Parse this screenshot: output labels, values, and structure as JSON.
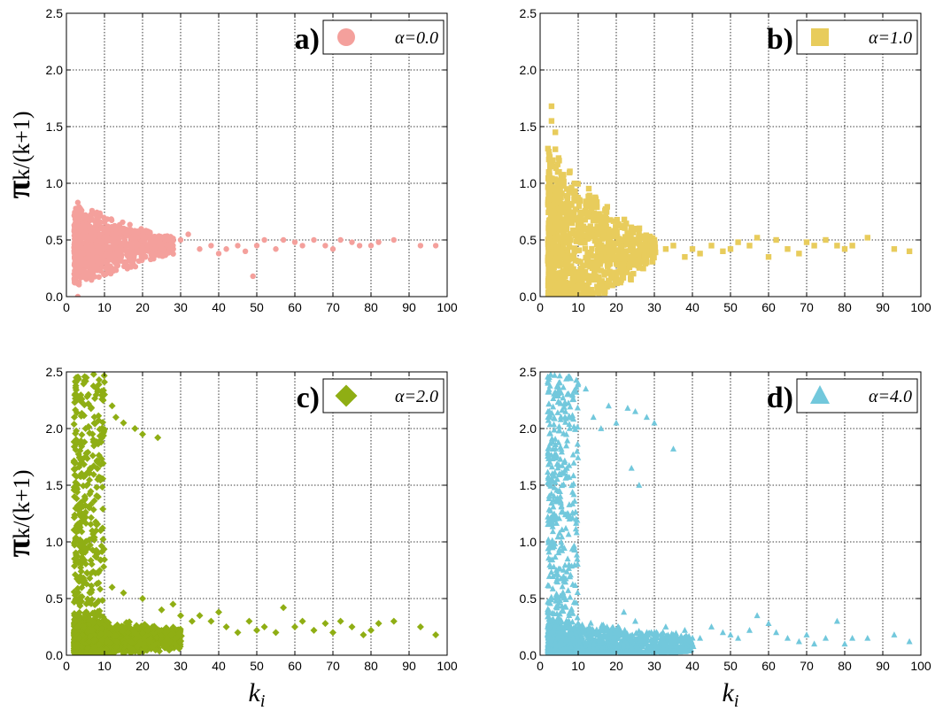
{
  "chart_data": [
    {
      "type": "scatter",
      "panel_label": "a)",
      "legend": "α=0.0",
      "legend_placement": "top-right",
      "marker": "circle",
      "color": "#f4a09c",
      "xlim": [
        0,
        100
      ],
      "ylim": [
        0,
        2.5
      ],
      "xticks": [
        "0",
        "10",
        "20",
        "30",
        "40",
        "50",
        "60",
        "70",
        "80",
        "90",
        "100"
      ],
      "yticks": [
        "0.0",
        "0.5",
        "1.0",
        "1.5",
        "2.0",
        "2.5"
      ],
      "ylabel": "πk/(k+1)",
      "xlabel": "",
      "grid": true,
      "points": [
        [
          3,
          0.83
        ],
        [
          3,
          0.0
        ],
        [
          4,
          0.76
        ],
        [
          5,
          0.72
        ],
        [
          6,
          0.68
        ],
        [
          8,
          0.7
        ],
        [
          10,
          0.6
        ],
        [
          12,
          0.55
        ],
        [
          15,
          0.6
        ],
        [
          18,
          0.55
        ],
        [
          20,
          0.5
        ],
        [
          22,
          0.48
        ],
        [
          25,
          0.52
        ],
        [
          28,
          0.45
        ],
        [
          30,
          0.5
        ],
        [
          32,
          0.55
        ],
        [
          35,
          0.42
        ],
        [
          38,
          0.45
        ],
        [
          40,
          0.38
        ],
        [
          42,
          0.42
        ],
        [
          45,
          0.45
        ],
        [
          47,
          0.4
        ],
        [
          49,
          0.18
        ],
        [
          50,
          0.45
        ],
        [
          52,
          0.5
        ],
        [
          55,
          0.42
        ],
        [
          57,
          0.5
        ],
        [
          60,
          0.48
        ],
        [
          62,
          0.45
        ],
        [
          65,
          0.5
        ],
        [
          68,
          0.45
        ],
        [
          70,
          0.42
        ],
        [
          72,
          0.5
        ],
        [
          75,
          0.48
        ],
        [
          77,
          0.45
        ],
        [
          80,
          0.45
        ],
        [
          82,
          0.48
        ],
        [
          86,
          0.5
        ],
        [
          93,
          0.45
        ],
        [
          97,
          0.45
        ]
      ],
      "dense": {
        "x0": 2,
        "x1": 28,
        "center": 0.45,
        "spread0": 0.38,
        "spread1": 0.08,
        "n": 1100
      }
    },
    {
      "type": "scatter",
      "panel_label": "b)",
      "legend": "α=1.0",
      "legend_placement": "top-right",
      "marker": "square",
      "color": "#e8cc5c",
      "xlim": [
        0,
        100
      ],
      "ylim": [
        0,
        2.5
      ],
      "xticks": [
        "0",
        "10",
        "20",
        "30",
        "40",
        "50",
        "60",
        "70",
        "80",
        "90",
        "100"
      ],
      "yticks": [
        "0.0",
        "0.5",
        "1.0",
        "1.5",
        "2.0",
        "2.5"
      ],
      "ylabel": "",
      "xlabel": "",
      "grid": true,
      "points": [
        [
          3,
          1.68
        ],
        [
          3,
          1.55
        ],
        [
          4,
          1.45
        ],
        [
          4,
          1.3
        ],
        [
          5,
          1.2
        ],
        [
          6,
          1.05
        ],
        [
          7,
          0.95
        ],
        [
          9,
          0.9
        ],
        [
          12,
          0.82
        ],
        [
          15,
          0.62
        ],
        [
          18,
          0.58
        ],
        [
          20,
          0.55
        ],
        [
          22,
          0.5
        ],
        [
          25,
          0.6
        ],
        [
          28,
          0.45
        ],
        [
          30,
          0.5
        ],
        [
          33,
          0.42
        ],
        [
          35,
          0.45
        ],
        [
          38,
          0.35
        ],
        [
          40,
          0.42
        ],
        [
          42,
          0.38
        ],
        [
          45,
          0.45
        ],
        [
          48,
          0.4
        ],
        [
          50,
          0.42
        ],
        [
          52,
          0.48
        ],
        [
          55,
          0.45
        ],
        [
          57,
          0.52
        ],
        [
          60,
          0.35
        ],
        [
          62,
          0.5
        ],
        [
          65,
          0.42
        ],
        [
          68,
          0.38
        ],
        [
          70,
          0.48
        ],
        [
          72,
          0.45
        ],
        [
          75,
          0.5
        ],
        [
          78,
          0.45
        ],
        [
          80,
          0.42
        ],
        [
          82,
          0.45
        ],
        [
          86,
          0.52
        ],
        [
          93,
          0.42
        ],
        [
          97,
          0.4
        ],
        [
          19,
          0.1
        ]
      ],
      "dense": {
        "x0": 2,
        "x1": 30,
        "center": 0.42,
        "spread0": 0.9,
        "spread1": 0.1,
        "n": 1100
      }
    },
    {
      "type": "scatter",
      "panel_label": "c)",
      "legend": "α=2.0",
      "legend_placement": "top-right",
      "marker": "diamond",
      "color": "#8fae14",
      "xlim": [
        0,
        100
      ],
      "ylim": [
        0,
        2.5
      ],
      "xticks": [
        "0",
        "10",
        "20",
        "30",
        "40",
        "50",
        "60",
        "70",
        "80",
        "90",
        "100"
      ],
      "yticks": [
        "0.0",
        "0.5",
        "1.0",
        "1.5",
        "2.0",
        "2.5"
      ],
      "ylabel": "πk/(k+1)",
      "xlabel": "ki",
      "grid": true,
      "points": [
        [
          8,
          2.35
        ],
        [
          10,
          2.3
        ],
        [
          12,
          2.2
        ],
        [
          15,
          2.05
        ],
        [
          18,
          2.0
        ],
        [
          20,
          1.95
        ],
        [
          24,
          1.92
        ],
        [
          13,
          2.1
        ],
        [
          6,
          1.3
        ],
        [
          9,
          1.1
        ],
        [
          12,
          0.6
        ],
        [
          15,
          0.55
        ],
        [
          20,
          0.5
        ],
        [
          25,
          0.4
        ],
        [
          28,
          0.45
        ],
        [
          30,
          0.35
        ],
        [
          33,
          0.3
        ],
        [
          35,
          0.35
        ],
        [
          38,
          0.3
        ],
        [
          40,
          0.38
        ],
        [
          42,
          0.25
        ],
        [
          45,
          0.2
        ],
        [
          48,
          0.3
        ],
        [
          50,
          0.22
        ],
        [
          52,
          0.25
        ],
        [
          55,
          0.2
        ],
        [
          57,
          0.42
        ],
        [
          60,
          0.25
        ],
        [
          62,
          0.3
        ],
        [
          65,
          0.22
        ],
        [
          68,
          0.28
        ],
        [
          70,
          0.2
        ],
        [
          72,
          0.3
        ],
        [
          75,
          0.25
        ],
        [
          78,
          0.18
        ],
        [
          80,
          0.22
        ],
        [
          82,
          0.28
        ],
        [
          86,
          0.3
        ],
        [
          93,
          0.25
        ],
        [
          97,
          0.18
        ]
      ],
      "dense": {
        "x0": 2,
        "x1": 30,
        "center": 0.15,
        "spread0": 0.2,
        "spread1": 0.1,
        "n": 1500
      },
      "tall": {
        "x0": 2,
        "x1": 10,
        "n": 380
      }
    },
    {
      "type": "scatter",
      "panel_label": "d)",
      "legend": "α=4.0",
      "legend_placement": "top-right",
      "marker": "triangle",
      "color": "#72c8dc",
      "xlim": [
        0,
        100
      ],
      "ylim": [
        0,
        2.5
      ],
      "xticks": [
        "0",
        "10",
        "20",
        "30",
        "40",
        "50",
        "60",
        "70",
        "80",
        "90",
        "100"
      ],
      "yticks": [
        "0.0",
        "0.5",
        "1.0",
        "1.5",
        "2.0",
        "2.5"
      ],
      "ylabel": "",
      "xlabel": "ki",
      "grid": true,
      "points": [
        [
          10,
          2.4
        ],
        [
          12,
          2.35
        ],
        [
          14,
          2.1
        ],
        [
          18,
          2.2
        ],
        [
          20,
          2.05
        ],
        [
          23,
          2.18
        ],
        [
          25,
          2.15
        ],
        [
          28,
          2.1
        ],
        [
          30,
          2.05
        ],
        [
          35,
          1.82
        ],
        [
          16,
          2.0
        ],
        [
          24,
          1.65
        ],
        [
          26,
          1.5
        ],
        [
          22,
          0.38
        ],
        [
          25,
          0.3
        ],
        [
          30,
          0.2
        ],
        [
          33,
          0.25
        ],
        [
          35,
          0.18
        ],
        [
          38,
          0.22
        ],
        [
          40,
          0.1
        ],
        [
          42,
          0.15
        ],
        [
          45,
          0.25
        ],
        [
          48,
          0.2
        ],
        [
          50,
          0.18
        ],
        [
          52,
          0.15
        ],
        [
          55,
          0.22
        ],
        [
          57,
          0.35
        ],
        [
          60,
          0.28
        ],
        [
          62,
          0.2
        ],
        [
          65,
          0.15
        ],
        [
          68,
          0.12
        ],
        [
          70,
          0.18
        ],
        [
          72,
          0.1
        ],
        [
          75,
          0.15
        ],
        [
          78,
          0.3
        ],
        [
          80,
          0.1
        ],
        [
          82,
          0.15
        ],
        [
          86,
          0.15
        ],
        [
          93,
          0.18
        ],
        [
          97,
          0.12
        ]
      ],
      "dense": {
        "x0": 2,
        "x1": 40,
        "center": 0.1,
        "spread0": 0.25,
        "spread1": 0.08,
        "n": 1500
      },
      "tall": {
        "x0": 2,
        "x1": 10,
        "n": 420
      }
    }
  ]
}
